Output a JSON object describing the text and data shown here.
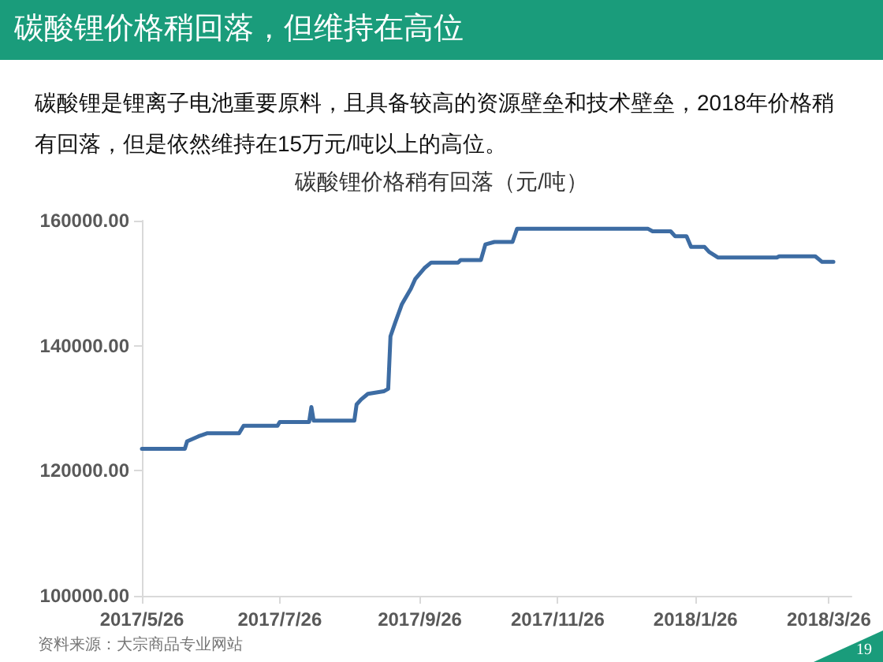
{
  "chart_data": {
    "type": "line",
    "title": "碳酸锂价格稍回落，但维持在高位",
    "subtitle": "碳酸锂是锂离子电池重要原料，且具备较高的资源壁垒和技术壁垒，2018年价格稍有回落，但是依然维持在15万元/吨以上的高位。",
    "annotations": [
      "碳酸锂价格稍有回落（元/吨）",
      "资料来源：大宗商品专业网站",
      "19"
    ],
    "x": [
      "2017-05-26",
      "2017-06-14",
      "2017-06-15",
      "2017-06-20",
      "2017-06-24",
      "2017-07-08",
      "2017-07-10",
      "2017-07-25",
      "2017-07-26",
      "2017-08-08",
      "2017-08-09",
      "2017-08-10",
      "2017-08-28",
      "2017-08-29",
      "2017-08-31",
      "2017-09-03",
      "2017-09-10",
      "2017-09-12",
      "2017-09-13",
      "2017-09-15",
      "2017-09-18",
      "2017-09-22",
      "2017-09-24",
      "2017-09-28",
      "2017-10-01",
      "2017-10-13",
      "2017-10-14",
      "2017-10-23",
      "2017-10-25",
      "2017-10-29",
      "2017-11-06",
      "2017-11-08",
      "2018-01-05",
      "2018-01-07",
      "2018-01-15",
      "2018-01-17",
      "2018-01-22",
      "2018-01-24",
      "2018-01-30",
      "2018-02-01",
      "2018-02-05",
      "2018-03-03",
      "2018-03-04",
      "2018-03-20",
      "2018-03-23",
      "2018-03-28"
    ],
    "values": [
      123500,
      123500,
      124700,
      125500,
      126000,
      126000,
      127200,
      127200,
      127800,
      127800,
      130200,
      128000,
      128000,
      130600,
      131400,
      132300,
      132700,
      133100,
      141500,
      143600,
      146600,
      149100,
      150700,
      152400,
      153300,
      153300,
      153700,
      153700,
      156200,
      156600,
      156600,
      158700,
      158700,
      158300,
      158300,
      157500,
      157500,
      155800,
      155800,
      155000,
      154100,
      154100,
      154300,
      154300,
      153400,
      153400
    ],
    "color": "#3d6ca3",
    "marker": "none",
    "line_style": "solid",
    "xlim": [
      "2017-05-26",
      "2018-04-05"
    ],
    "xticks": [
      {
        "value": "2017-05-26",
        "label": "2017/5/26"
      },
      {
        "value": "2017-07-26",
        "label": "2017/7/26"
      },
      {
        "value": "2017-09-26",
        "label": "2017/9/26"
      },
      {
        "value": "2017-11-26",
        "label": "2017/11/26"
      },
      {
        "value": "2018-01-26",
        "label": "2018/1/26"
      },
      {
        "value": "2018-03-26",
        "label": "2018/3/26"
      }
    ],
    "ylim": [
      100000,
      160000
    ],
    "yticks": [
      {
        "value": 100000,
        "label": "100000.00"
      },
      {
        "value": 120000,
        "label": "120000.00"
      },
      {
        "value": 140000,
        "label": "140000.00"
      },
      {
        "value": 160000,
        "label": "160000.00"
      }
    ]
  }
}
